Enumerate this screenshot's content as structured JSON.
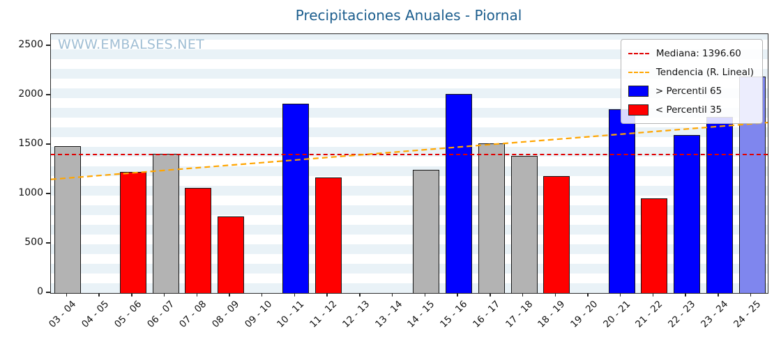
{
  "title": "Precipitaciones Anuales - Piornal",
  "watermark": "WWW.EMBALSES.NET",
  "legend": {
    "median": "Mediana: 1396.60",
    "trend": "Tendencia (R. Lineal)",
    "p65": "> Percentil 65",
    "p35": "< Percentil 35"
  },
  "colors": {
    "blue": "#0000ff",
    "red": "#ff0000",
    "gray": "#b3b3b3",
    "lightblue": "#7f86ee",
    "median_line": "#e00000",
    "trend_line": "#ffa500",
    "bar_edge": "#141414",
    "title_text": "#1b5d8d",
    "watermark_text": "#a0bed4"
  },
  "chart_data": {
    "type": "bar",
    "title": "Precipitaciones Anuales - Piornal",
    "xlabel": "",
    "ylabel": "",
    "ylim": [
      0,
      2620
    ],
    "yticks": [
      0,
      500,
      1000,
      1500,
      2000,
      2500
    ],
    "grid": "horizontal-stripes",
    "legend_position": "upper right",
    "categories": [
      "03 - 04",
      "04 - 05",
      "05 - 06",
      "06 - 07",
      "07 - 08",
      "08 - 09",
      "09 - 10",
      "10 - 11",
      "11 - 12",
      "12 - 13",
      "13 - 14",
      "14 - 15",
      "15 - 16",
      "16 - 17",
      "17 - 18",
      "18 - 19",
      "19 - 20",
      "20 - 21",
      "21 - 22",
      "22 - 23",
      "23 - 24",
      "24 - 25"
    ],
    "values": [
      1480,
      null,
      1220,
      1400,
      1060,
      770,
      null,
      1910,
      1165,
      null,
      null,
      1240,
      2010,
      1510,
      1380,
      1175,
      null,
      1855,
      950,
      1590,
      1775,
      2185
    ],
    "bar_colors": [
      "gray",
      null,
      "red",
      "gray",
      "red",
      "red",
      null,
      "blue",
      "red",
      null,
      null,
      "gray",
      "blue",
      "gray",
      "gray",
      "red",
      null,
      "blue",
      "red",
      "blue",
      "blue",
      "lightblue"
    ],
    "median_value": 1396.6,
    "trend_start": 1150,
    "trend_end": 1725
  }
}
